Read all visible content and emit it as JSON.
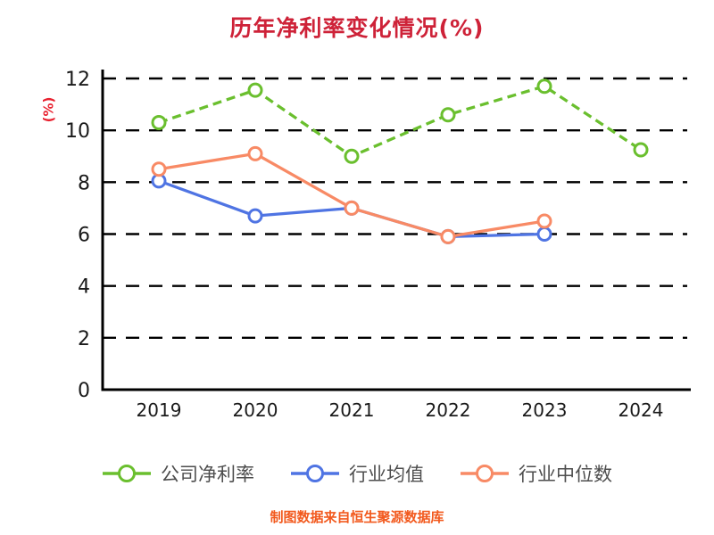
{
  "title": "历年净利率变化情况(%)",
  "ylabel": "(%)",
  "footer": "制图数据来自恒生聚源数据库",
  "colors": {
    "title": "#ce2238",
    "ylabel": "#e8212f",
    "footer": "#f2591d",
    "axis": "#000000",
    "grid": "#000000",
    "tick_text": "#1a1a1a",
    "legend_text": "#4d4d4d"
  },
  "chart_data": {
    "type": "line",
    "title": "历年净利率变化情况(%)",
    "xlabel": "",
    "ylabel": "(%)",
    "categories": [
      "2019",
      "2020",
      "2021",
      "2022",
      "2023",
      "2024"
    ],
    "series": [
      {
        "name": "公司净利率",
        "color": "#6abf2e",
        "dashed": true,
        "values": [
          10.3,
          11.55,
          9.0,
          10.6,
          11.7,
          9.25
        ]
      },
      {
        "name": "行业均值",
        "color": "#4f74e3",
        "dashed": false,
        "values": [
          8.05,
          6.7,
          7.0,
          5.9,
          6.0,
          null
        ]
      },
      {
        "name": "行业中位数",
        "color": "#f88a65",
        "dashed": false,
        "values": [
          8.5,
          9.1,
          7.0,
          5.9,
          6.5,
          null
        ]
      }
    ],
    "ylim": [
      0,
      12
    ],
    "yticks": [
      0,
      2,
      4,
      6,
      8,
      10,
      12
    ],
    "grid": "dashed-horizontal",
    "legend_position": "bottom",
    "marker": "open-circle"
  }
}
